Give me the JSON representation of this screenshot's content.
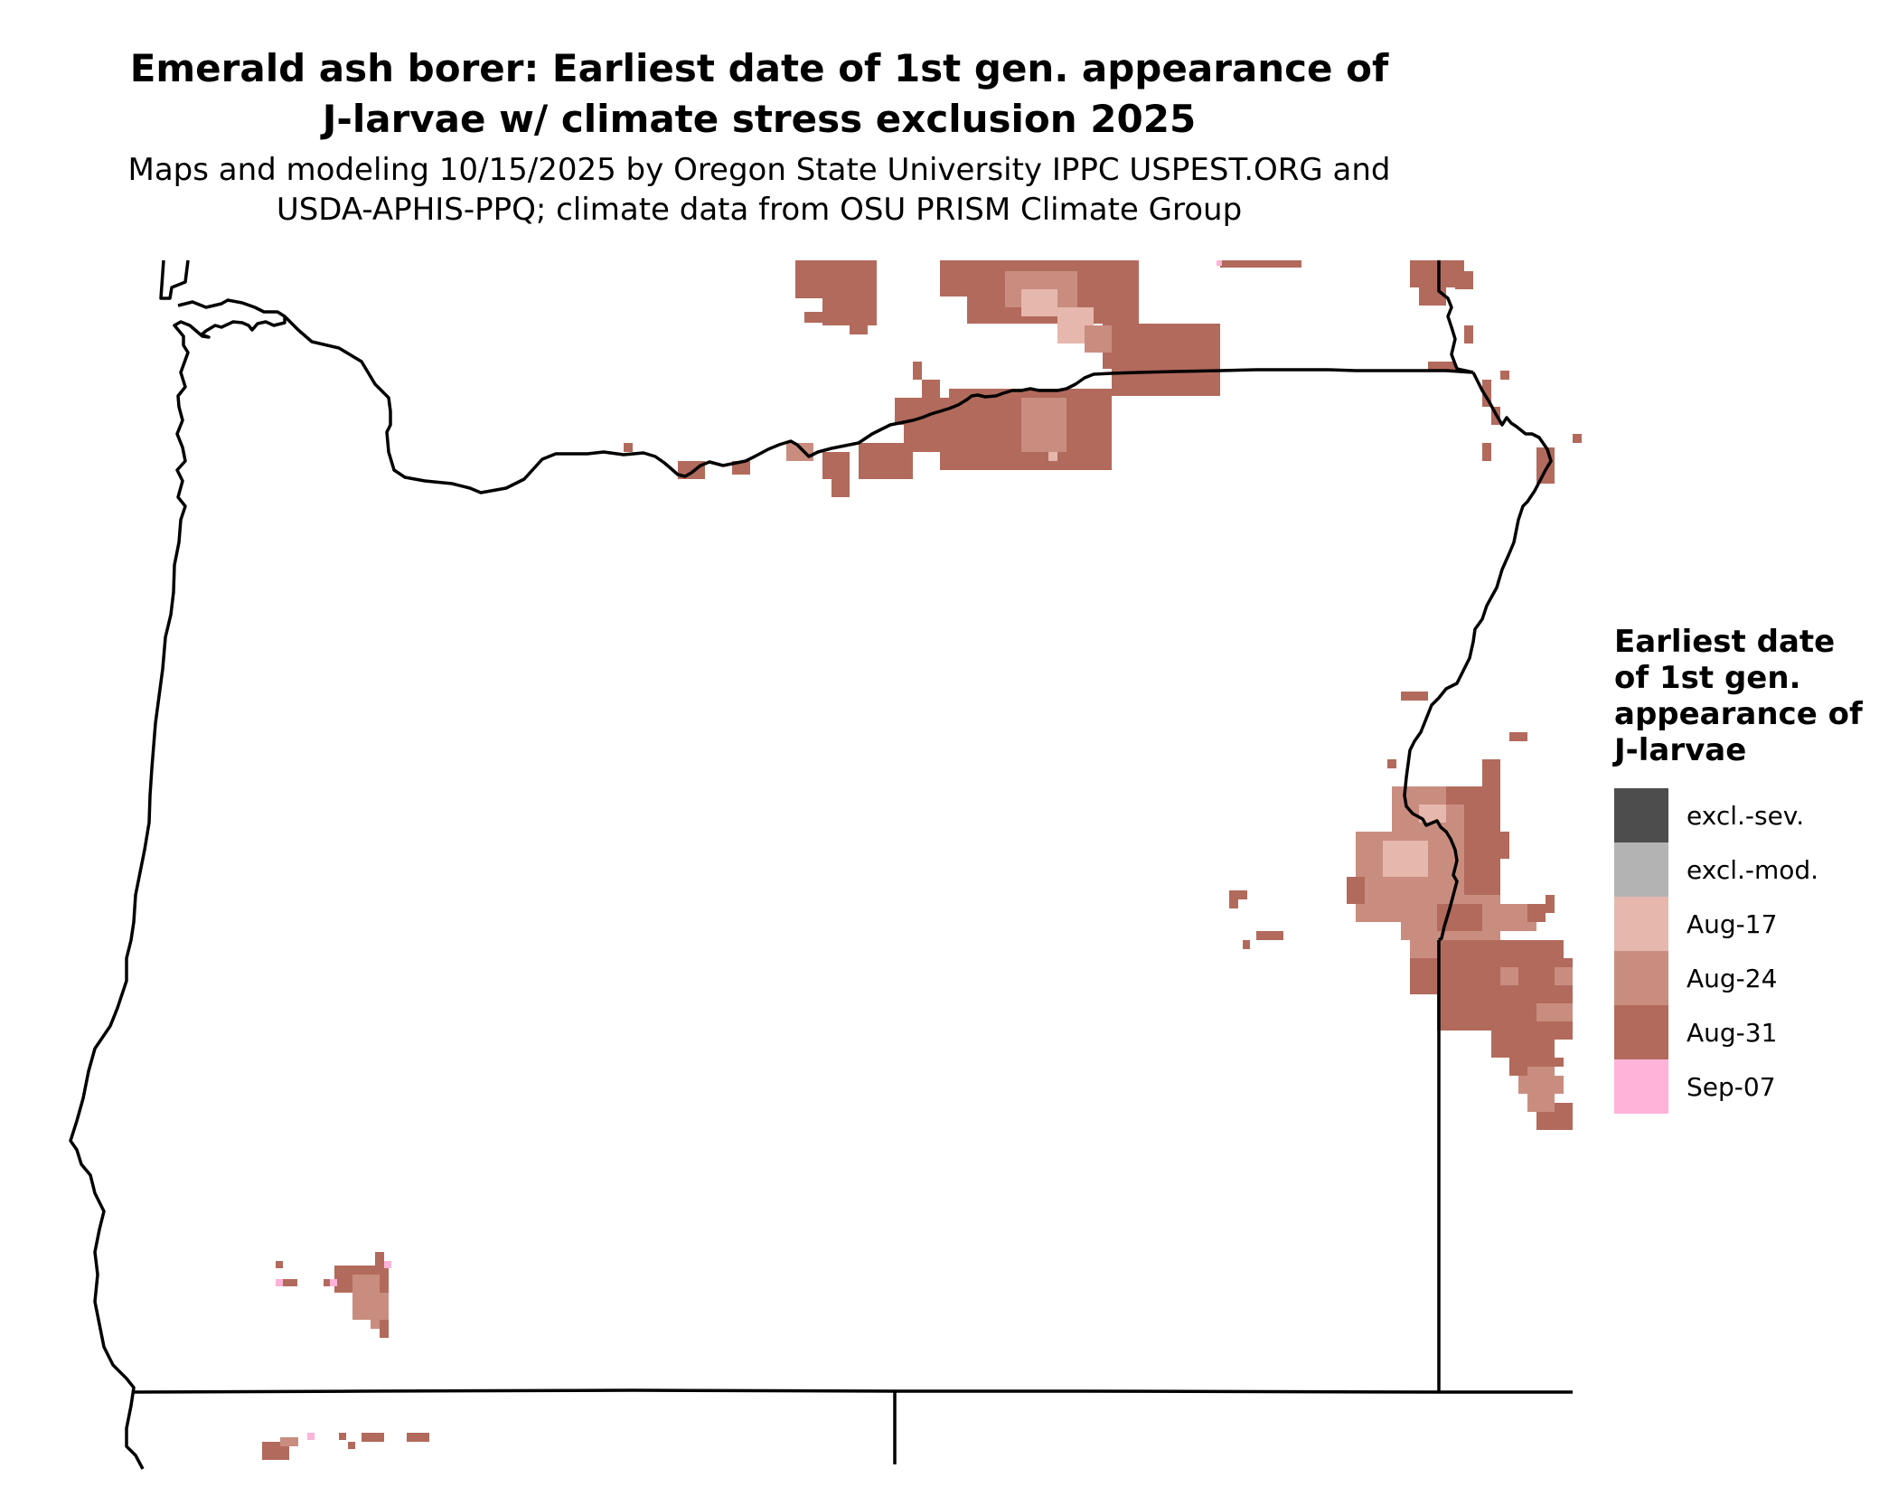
{
  "title": {
    "line1": "Emerald ash borer: Earliest date of 1st gen. appearance of",
    "line2": "J-larvae w/ climate stress exclusion 2025"
  },
  "subtitle": {
    "line1": "Maps and modeling 10/15/2025 by Oregon State University IPPC USPEST.ORG and",
    "line2": "USDA-APHIS-PPQ; climate data from OSU PRISM Climate Group"
  },
  "legend": {
    "title_lines": [
      "Earliest date",
      "of 1st gen.",
      "appearance of",
      "J-larvae"
    ],
    "items": [
      {
        "label": "excl.-sev.",
        "color": "#4d4d4d"
      },
      {
        "label": "excl.-mod.",
        "color": "#b3b3b3"
      },
      {
        "label": "Aug-17",
        "color": "#e6b7ad"
      },
      {
        "label": "Aug-24",
        "color": "#c98d80"
      },
      {
        "label": "Aug-31",
        "color": "#b26a5c"
      },
      {
        "label": "Sep-07",
        "color": "#ffb3d9"
      }
    ]
  }
}
